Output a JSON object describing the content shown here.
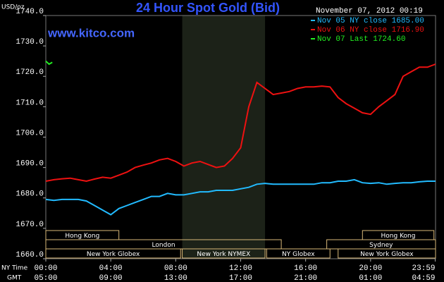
{
  "chart_data": {
    "type": "line",
    "title": "24 Hour Spot Gold (Bid)",
    "watermark": "www.kitco.com",
    "ylabel": "USD/oz",
    "timestamp": "November 07, 2012 00:19",
    "xlabel": "NY Time",
    "x2label": "GMT",
    "xlim": [
      0,
      24
    ],
    "ylim": [
      1660,
      1740
    ],
    "yticks": [
      {
        "value": 1660,
        "label": "1660.0"
      },
      {
        "value": 1670,
        "label": "1670.0"
      },
      {
        "value": 1680,
        "label": "1680.0"
      },
      {
        "value": 1690,
        "label": "1690.0"
      },
      {
        "value": 1700,
        "label": "1700.0"
      },
      {
        "value": 1710,
        "label": "1710.0"
      },
      {
        "value": 1720,
        "label": "1720.0"
      },
      {
        "value": 1730,
        "label": "1730.0"
      },
      {
        "value": 1740,
        "label": "1740.0"
      }
    ],
    "xticks": [
      {
        "value": 0,
        "label": "00:00"
      },
      {
        "value": 4,
        "label": "04:00"
      },
      {
        "value": 8,
        "label": "08:00"
      },
      {
        "value": 12,
        "label": "12:00"
      },
      {
        "value": 16,
        "label": "16:00"
      },
      {
        "value": 20,
        "label": "20:00"
      },
      {
        "value": 23.98,
        "label": "23:59"
      }
    ],
    "x2ticks": [
      {
        "value": 0,
        "label": "05:00"
      },
      {
        "value": 4,
        "label": "09:00"
      },
      {
        "value": 8,
        "label": "13:00"
      },
      {
        "value": 12,
        "label": "17:00"
      },
      {
        "value": 16,
        "label": "21:00"
      },
      {
        "value": 20,
        "label": "01:00"
      },
      {
        "value": 23.98,
        "label": "04:59"
      }
    ],
    "grid": false,
    "series": [
      {
        "name": "Nov 05 NY close 1685.00",
        "color": "#22bbff",
        "x": [
          0,
          0.5,
          1,
          1.5,
          2,
          2.5,
          3,
          3.5,
          4,
          4.5,
          5,
          5.5,
          6,
          6.5,
          7,
          7.5,
          8,
          8.5,
          9,
          9.5,
          10,
          10.5,
          11,
          11.5,
          12,
          12.5,
          13,
          13.5,
          14,
          14.5,
          15,
          15.5,
          16,
          16.5,
          17,
          17.5,
          18,
          18.5,
          19,
          19.5,
          20,
          20.5,
          21,
          21.5,
          22,
          22.5,
          23,
          23.5,
          24
        ],
        "values": [
          1679.5,
          1679.2,
          1679.5,
          1679.5,
          1679.5,
          1679,
          1677.5,
          1676,
          1674.5,
          1676.5,
          1677.5,
          1678.5,
          1679.5,
          1680.5,
          1680.5,
          1681.5,
          1681,
          1681,
          1681.5,
          1682,
          1682,
          1682.5,
          1682.5,
          1682.5,
          1683,
          1683.5,
          1684.5,
          1684.8,
          1684.5,
          1684.5,
          1684.5,
          1684.5,
          1684.5,
          1684.5,
          1685,
          1685,
          1685.5,
          1685.5,
          1686,
          1685,
          1684.8,
          1685,
          1684.5,
          1684.8,
          1685,
          1685,
          1685.3,
          1685.5,
          1685.5
        ]
      },
      {
        "name": "Nov 06 NY close 1716.90",
        "color": "#ee1111",
        "x": [
          0,
          0.5,
          1,
          1.5,
          2,
          2.5,
          3,
          3.5,
          4,
          4.5,
          5,
          5.5,
          6,
          6.5,
          7,
          7.5,
          8,
          8.5,
          9,
          9.5,
          10,
          10.5,
          11,
          11.5,
          12,
          12.5,
          13,
          13.5,
          14,
          14.5,
          15,
          15.5,
          16,
          16.5,
          17,
          17.5,
          18,
          18.5,
          19,
          19.5,
          20,
          20.5,
          21,
          21.5,
          22,
          22.5,
          23,
          23.5,
          24
        ],
        "values": [
          1685.5,
          1686,
          1686.3,
          1686.5,
          1686,
          1685.5,
          1686.2,
          1686.8,
          1686.5,
          1687.5,
          1688.5,
          1690,
          1690.8,
          1691.5,
          1692.5,
          1693,
          1692,
          1690.5,
          1691.5,
          1692,
          1691,
          1690,
          1690.5,
          1693,
          1696.5,
          1710,
          1718,
          1716,
          1714,
          1714.5,
          1715,
          1716,
          1716.5,
          1716.5,
          1716.8,
          1716.5,
          1713,
          1711,
          1709.5,
          1708,
          1707.5,
          1710,
          1712,
          1714,
          1720,
          1721.5,
          1723,
          1723,
          1724
        ]
      },
      {
        "name": "Nov 07 Last 1724.60",
        "color": "#22ee22",
        "x": [
          0,
          0.2,
          0.4
        ],
        "values": [
          1725,
          1724,
          1724.6
        ]
      }
    ],
    "session_rows": [
      [
        {
          "name": "Hong Kong",
          "start": 0,
          "end": 4.5
        },
        {
          "name": "Hong Kong",
          "start": 19.5,
          "end": 23.9
        }
      ],
      [
        {
          "name": "London",
          "start": 0,
          "end": 14.5
        },
        {
          "name": "Sydney",
          "start": 17.3,
          "end": 24
        }
      ],
      [
        {
          "name": "New York Globex",
          "start": 0,
          "end": 8.3
        },
        {
          "name": "New York NYMEX",
          "start": 8.4,
          "end": 13.5,
          "shaded": true
        },
        {
          "name": "NY Globex",
          "start": 13.6,
          "end": 17.5
        },
        {
          "name": "New York Globex",
          "start": 18,
          "end": 24
        }
      ]
    ]
  }
}
